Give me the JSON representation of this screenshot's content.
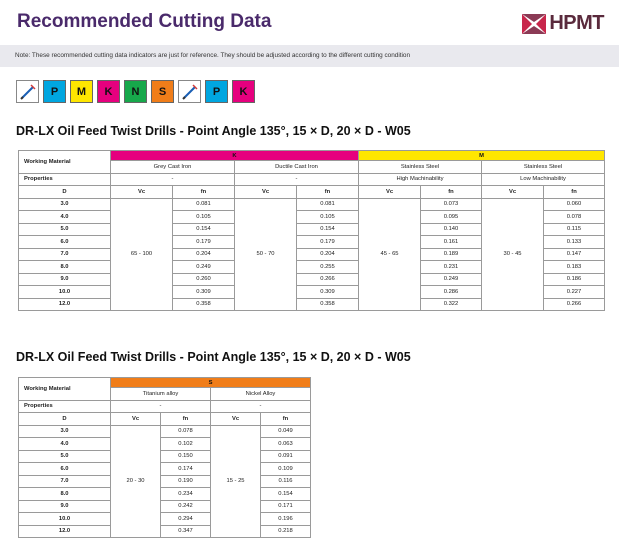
{
  "page": {
    "title": "Recommended Cutting Data",
    "logo_text": "HPMT",
    "note": "Note: These recommended cutting data indicators are just for reference. They should be adjusted according to the different cutting condition"
  },
  "chips": {
    "group1": [
      "P",
      "M",
      "K",
      "N",
      "S"
    ],
    "group2": [
      "P",
      "K"
    ]
  },
  "colors": {
    "P": "#00a6e0",
    "M": "#ffe600",
    "K": "#e6007e",
    "N": "#17a84b",
    "S": "#f07d19",
    "title": "#4a2a6b",
    "logo": "#5a2a3c"
  },
  "table1": {
    "title": "DR-LX Oil Feed Twist Drills - Point Angle 135°, 15 × D, 20 × D - W05",
    "working_material_label": "Working Material",
    "properties_label": "Properties",
    "group_k": "K",
    "group_m": "M",
    "materials": [
      "Grey Cast Iron",
      "Ductile Cast Iron",
      "Stainless Steel",
      "Stainless Steel"
    ],
    "properties": [
      "-",
      "-",
      "High Machinability",
      "Low Machinability"
    ],
    "d_label": "D",
    "vc_label": "Vc",
    "fn_label": "fn",
    "vc_values": [
      "65 - 100",
      "50 - 70",
      "45 - 65",
      "30 - 45"
    ],
    "rows": [
      {
        "d": "3.0",
        "fn": [
          "0.081",
          "0.081",
          "0.073",
          "0.060"
        ]
      },
      {
        "d": "4.0",
        "fn": [
          "0.105",
          "0.105",
          "0.095",
          "0.078"
        ]
      },
      {
        "d": "5.0",
        "fn": [
          "0.154",
          "0.154",
          "0.140",
          "0.115"
        ]
      },
      {
        "d": "6.0",
        "fn": [
          "0.179",
          "0.179",
          "0.161",
          "0.133"
        ]
      },
      {
        "d": "7.0",
        "fn": [
          "0.204",
          "0.204",
          "0.189",
          "0.147"
        ]
      },
      {
        "d": "8.0",
        "fn": [
          "0.249",
          "0.255",
          "0.231",
          "0.183"
        ]
      },
      {
        "d": "9.0",
        "fn": [
          "0.260",
          "0.266",
          "0.249",
          "0.186"
        ]
      },
      {
        "d": "10.0",
        "fn": [
          "0.309",
          "0.309",
          "0.286",
          "0.227"
        ]
      },
      {
        "d": "12.0",
        "fn": [
          "0.358",
          "0.358",
          "0.322",
          "0.266"
        ]
      }
    ]
  },
  "table2": {
    "title": "DR-LX Oil Feed Twist Drills - Point Angle 135°, 15 × D, 20 × D - W05",
    "working_material_label": "Working Material",
    "properties_label": "Properties",
    "group_s": "S",
    "materials": [
      "Titanium alloy",
      "Nickel Alloy"
    ],
    "properties": [
      "-",
      "-"
    ],
    "d_label": "D",
    "vc_label": "Vc",
    "fn_label": "fn",
    "vc_values": [
      "20 - 30",
      "15 - 25"
    ],
    "rows": [
      {
        "d": "3.0",
        "fn": [
          "0.078",
          "0.049"
        ]
      },
      {
        "d": "4.0",
        "fn": [
          "0.102",
          "0.063"
        ]
      },
      {
        "d": "5.0",
        "fn": [
          "0.150",
          "0.091"
        ]
      },
      {
        "d": "6.0",
        "fn": [
          "0.174",
          "0.109"
        ]
      },
      {
        "d": "7.0",
        "fn": [
          "0.190",
          "0.116"
        ]
      },
      {
        "d": "8.0",
        "fn": [
          "0.234",
          "0.154"
        ]
      },
      {
        "d": "9.0",
        "fn": [
          "0.242",
          "0.171"
        ]
      },
      {
        "d": "10.0",
        "fn": [
          "0.294",
          "0.196"
        ]
      },
      {
        "d": "12.0",
        "fn": [
          "0.347",
          "0.218"
        ]
      }
    ]
  }
}
